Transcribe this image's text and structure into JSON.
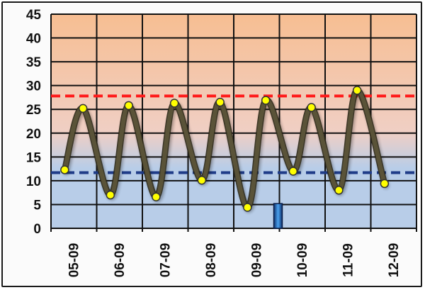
{
  "chart_data": {
    "type": "line",
    "title": "",
    "xlabel": "",
    "ylabel": "",
    "ylim": [
      0,
      45
    ],
    "y_ticks": [
      "0",
      "5",
      "10",
      "15",
      "20",
      "25",
      "30",
      "35",
      "40",
      "45"
    ],
    "categories": [
      "05-09",
      "06-09",
      "07-09",
      "08-09",
      "09-09",
      "10-09",
      "11-09",
      "12-09"
    ],
    "grid": true,
    "legend": "none",
    "series": [
      {
        "points": [
          {
            "x": "05-09",
            "y": 12.3
          },
          {
            "x": "05-09",
            "y": 25.2
          },
          {
            "x": "06-09",
            "y": 7.0
          },
          {
            "x": "06-09",
            "y": 25.8
          },
          {
            "x": "07-09",
            "y": 6.6
          },
          {
            "x": "07-09",
            "y": 26.3
          },
          {
            "x": "08-09",
            "y": 10.1
          },
          {
            "x": "08-09",
            "y": 26.5
          },
          {
            "x": "09-09",
            "y": 4.4
          },
          {
            "x": "09-09",
            "y": 26.9
          },
          {
            "x": "10-09",
            "y": 12.0
          },
          {
            "x": "10-09",
            "y": 25.4
          },
          {
            "x": "11-09",
            "y": 8.0
          },
          {
            "x": "11-09",
            "y": 29.0
          },
          {
            "x": "12-09",
            "y": 9.4
          }
        ],
        "color": "#5a5338",
        "marker_color": "#ffff00"
      }
    ],
    "reference_lines": [
      {
        "y": 27.8,
        "color": "#ff1a1a",
        "style": "dashed"
      },
      {
        "y": 11.7,
        "color": "#1f3c88",
        "style": "dashed"
      }
    ],
    "bar": {
      "x": "09-09",
      "y": 5.2,
      "color": "#2a6fc4"
    },
    "colors": {
      "plot_top": "#f7be92",
      "plot_mid": "#f0cfc4",
      "plot_bottom": "#b8cde8",
      "grid": "#111111"
    }
  }
}
